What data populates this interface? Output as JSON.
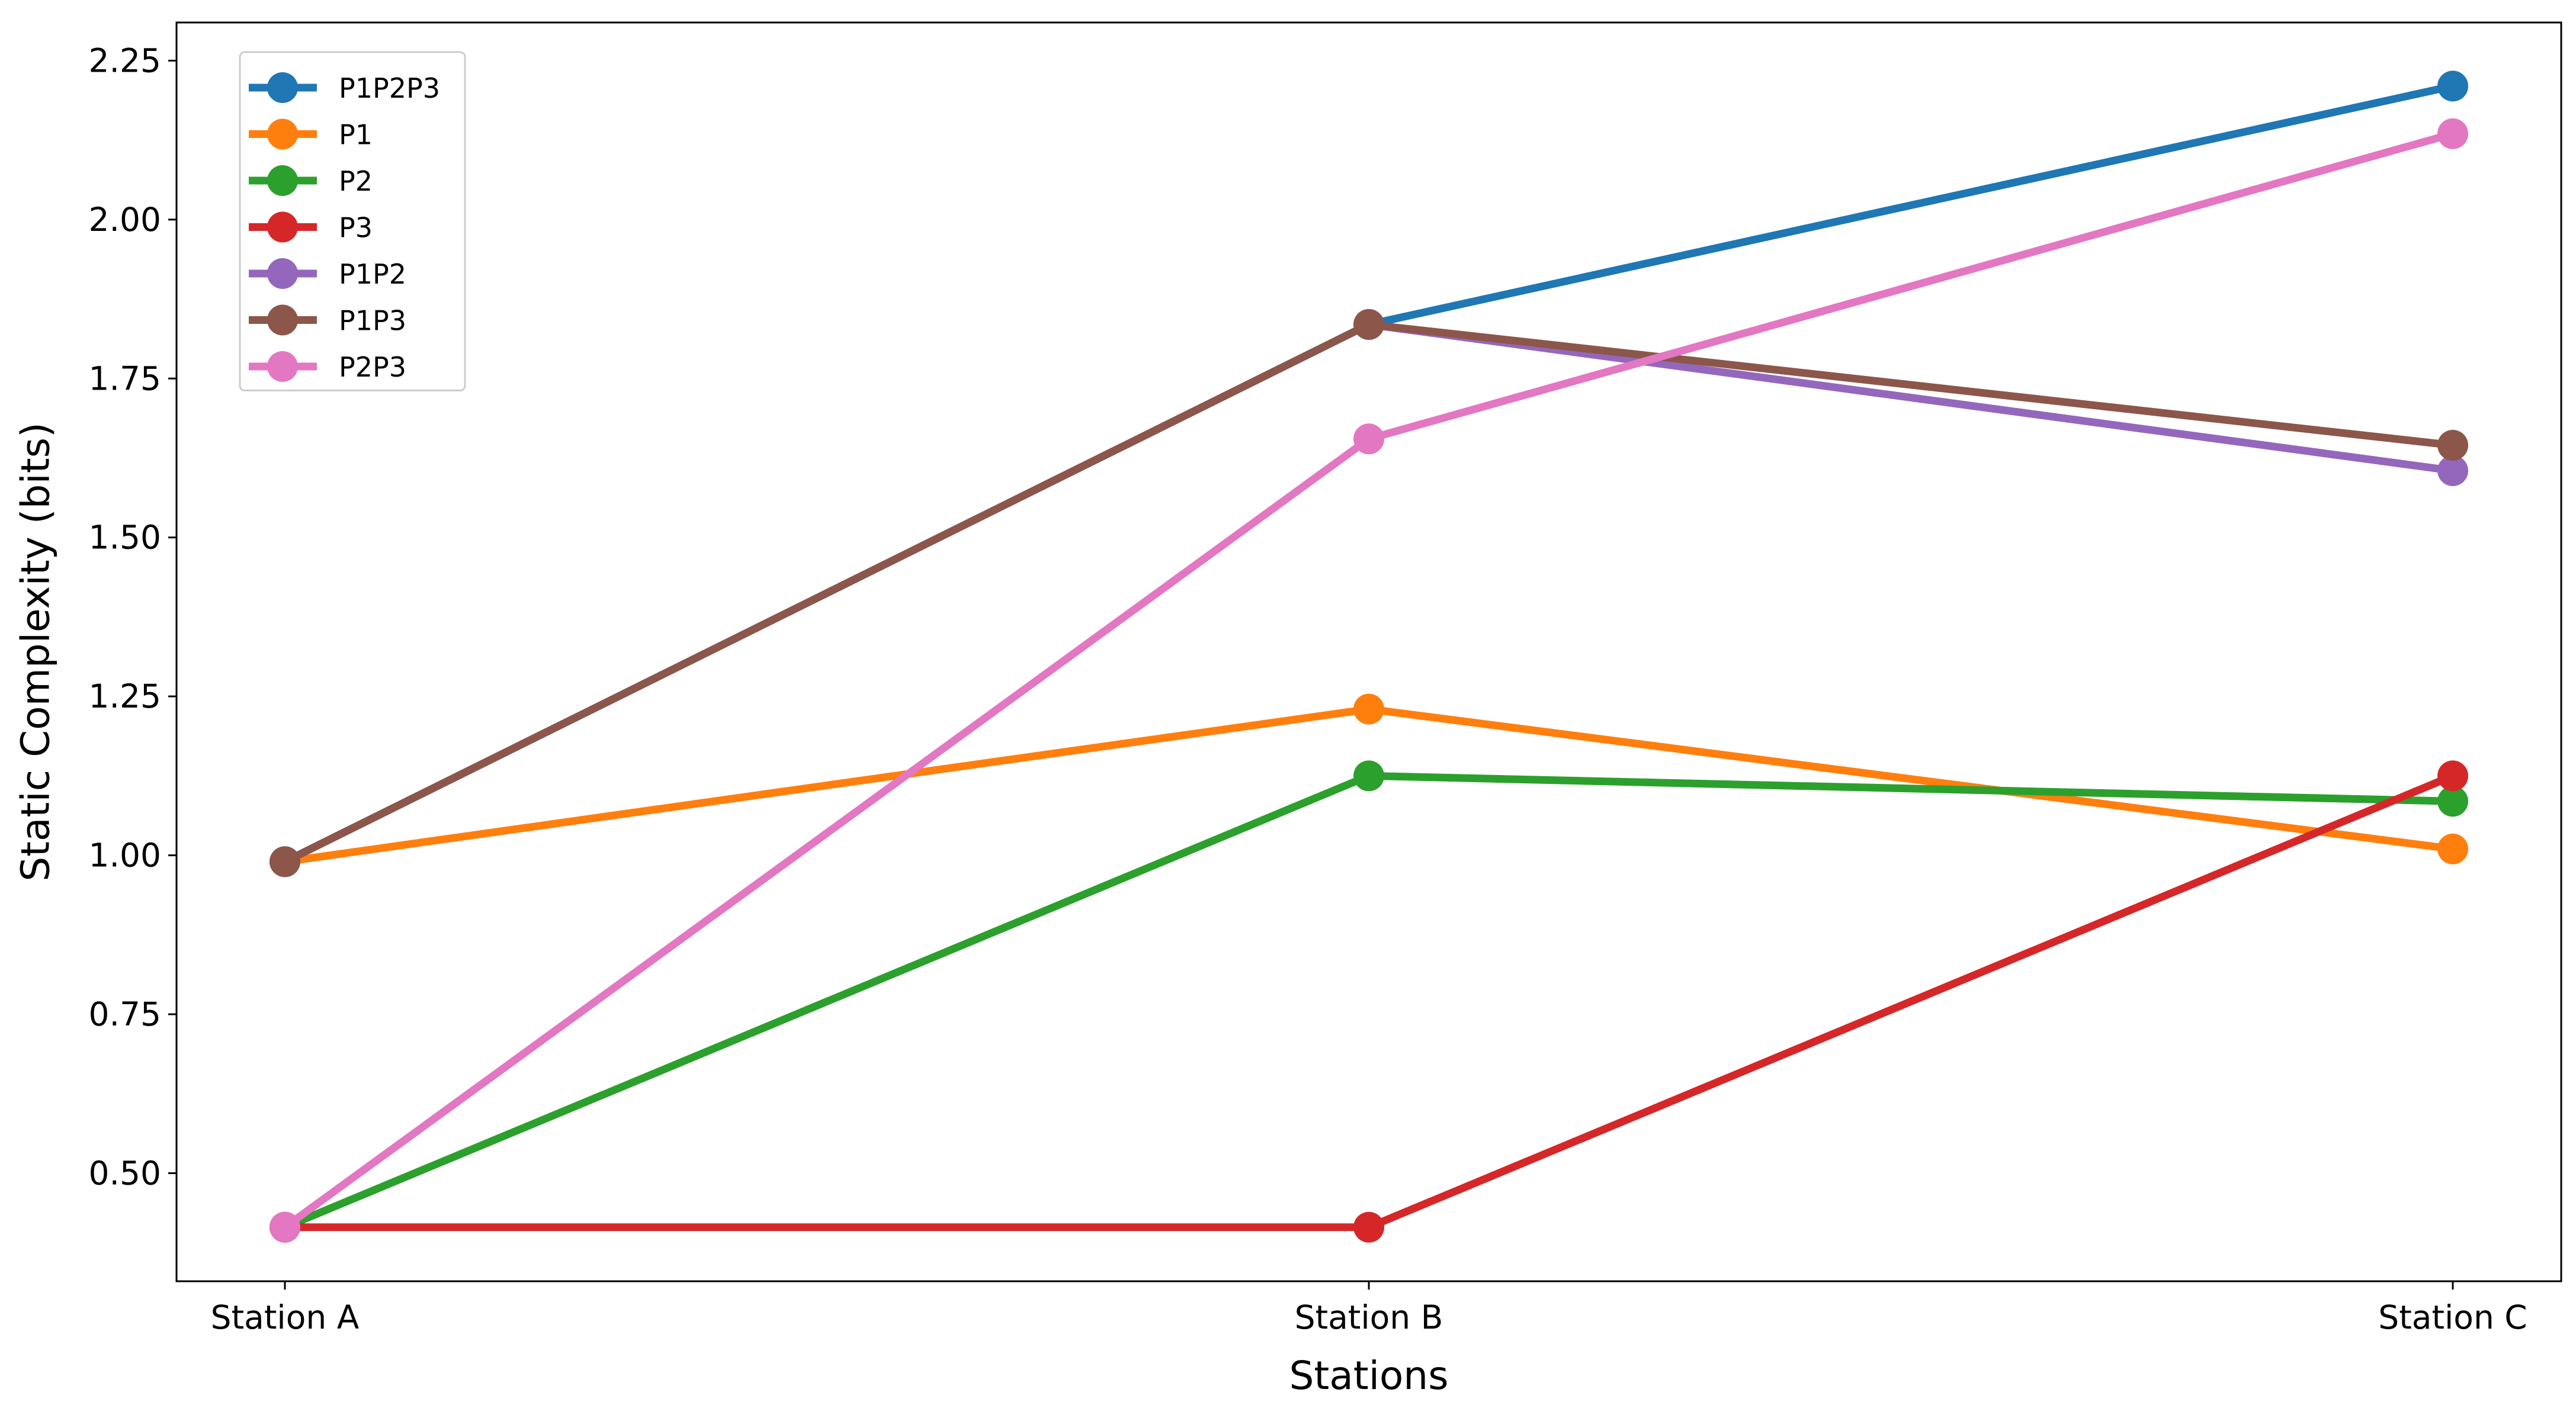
{
  "chart_data": {
    "type": "line",
    "title": "",
    "xlabel": "Stations",
    "ylabel": "Static Complexity (bits)",
    "categories": [
      "Station A",
      "Station B",
      "Station C"
    ],
    "ylim": [
      0.33,
      2.31
    ],
    "yticks": [
      0.5,
      0.75,
      1.0,
      1.25,
      1.5,
      1.75,
      2.0,
      2.25
    ],
    "ytick_labels": [
      "0.50",
      "0.75",
      "1.00",
      "1.25",
      "1.50",
      "1.75",
      "2.00",
      "2.25"
    ],
    "grid": false,
    "legend_position": "top-left",
    "series": [
      {
        "name": "P1P2P3",
        "color": "#1f77b4",
        "values": [
          0.99,
          1.835,
          2.21
        ]
      },
      {
        "name": "P1",
        "color": "#ff7f0e",
        "values": [
          0.99,
          1.23,
          1.01
        ]
      },
      {
        "name": "P2",
        "color": "#2ca02c",
        "values": [
          0.415,
          1.125,
          1.085
        ]
      },
      {
        "name": "P3",
        "color": "#d62728",
        "values": [
          0.415,
          0.415,
          1.125
        ]
      },
      {
        "name": "P1P2",
        "color": "#9467bd",
        "values": [
          0.99,
          1.835,
          1.605
        ]
      },
      {
        "name": "P1P3",
        "color": "#8c564b",
        "values": [
          0.99,
          1.835,
          1.645
        ]
      },
      {
        "name": "P2P3",
        "color": "#e377c2",
        "values": [
          0.415,
          1.655,
          2.135
        ]
      }
    ]
  }
}
